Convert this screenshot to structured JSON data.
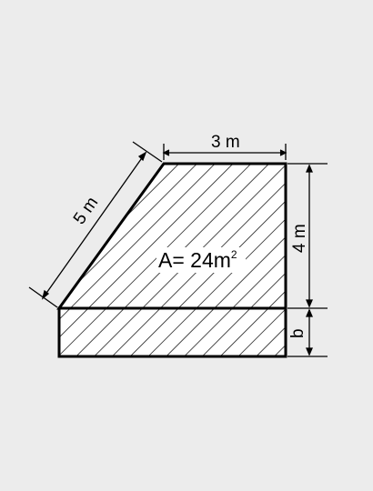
{
  "diagram": {
    "top_width_label": "3  m",
    "slant_label": "5 m",
    "height_label": "4 m",
    "unknown_label": "b",
    "area_prefix": "A= 24m",
    "area_superscript": "2"
  }
}
